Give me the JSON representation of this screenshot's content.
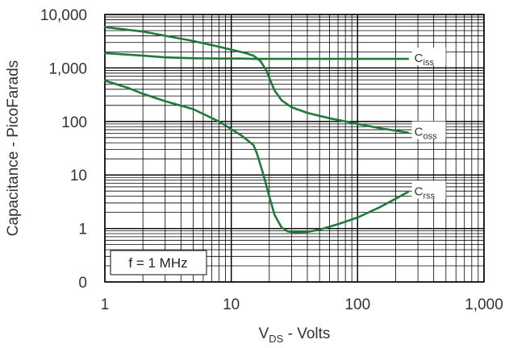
{
  "chart_data": {
    "type": "line",
    "xscale": "log",
    "yscale": "log",
    "xlim": [
      1,
      1000
    ],
    "ylim": [
      0.1,
      10000
    ],
    "xticks": [
      {
        "value": 1,
        "label": "1"
      },
      {
        "value": 10,
        "label": "10"
      },
      {
        "value": 100,
        "label": "100"
      },
      {
        "value": 1000,
        "label": "1,000"
      }
    ],
    "yticks": [
      {
        "value": 0.1,
        "label": "0"
      },
      {
        "value": 1,
        "label": "1"
      },
      {
        "value": 10,
        "label": "10"
      },
      {
        "value": 100,
        "label": "100"
      },
      {
        "value": 1000,
        "label": "1,000"
      },
      {
        "value": 10000,
        "label": "10,000"
      }
    ],
    "xlabel": {
      "main": "V",
      "sub": "DS",
      "rest": " - Volts"
    },
    "ylabel": "Capacitance - PicoFarads",
    "grid": "minor-log",
    "annotation": "f = 1 MHz",
    "line_color": "#1f7a3a",
    "series": [
      {
        "name": "Ciss",
        "label_main": "C",
        "label_sub": "iss",
        "x": [
          1,
          2,
          3,
          5,
          8,
          12,
          15,
          18,
          20,
          25,
          50,
          100,
          250
        ],
        "y": [
          1900,
          1700,
          1580,
          1520,
          1500,
          1500,
          1480,
          1480,
          1480,
          1480,
          1480,
          1480,
          1480
        ]
      },
      {
        "name": "Coss",
        "label_main": "C",
        "label_sub": "oss",
        "x": [
          1,
          2,
          3,
          5,
          8,
          10,
          13,
          15,
          17,
          19,
          20,
          22,
          25,
          30,
          40,
          60,
          100,
          150,
          250
        ],
        "y": [
          5800,
          4800,
          4000,
          3200,
          2500,
          2200,
          1900,
          1700,
          1350,
          900,
          650,
          380,
          250,
          185,
          145,
          115,
          90,
          75,
          62
        ]
      },
      {
        "name": "Crss",
        "label_main": "C",
        "label_sub": "rss",
        "x": [
          1,
          1.5,
          2,
          3,
          5,
          8,
          10,
          12,
          15,
          16,
          18,
          20,
          22,
          25,
          28,
          32,
          40,
          50,
          70,
          100,
          150,
          200,
          250
        ],
        "y": [
          580,
          430,
          330,
          240,
          170,
          100,
          72,
          55,
          36,
          25,
          10,
          4,
          1.8,
          1.05,
          0.88,
          0.85,
          0.86,
          0.95,
          1.2,
          1.6,
          2.5,
          3.6,
          4.8
        ]
      }
    ]
  }
}
